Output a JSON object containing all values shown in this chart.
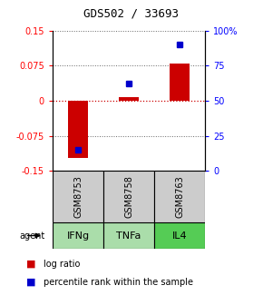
{
  "title": "GDS502 / 33693",
  "samples": [
    "GSM8753",
    "GSM8758",
    "GSM8763"
  ],
  "agents": [
    "IFNg",
    "TNFa",
    "IL4"
  ],
  "log_ratios": [
    -0.122,
    0.007,
    0.08
  ],
  "percentile_ranks": [
    15,
    62,
    90
  ],
  "ylim_left": [
    -0.15,
    0.15
  ],
  "ylim_right": [
    0,
    100
  ],
  "left_ticks": [
    -0.15,
    -0.075,
    0,
    0.075,
    0.15
  ],
  "right_ticks": [
    0,
    25,
    50,
    75,
    100
  ],
  "right_tick_labels": [
    "0",
    "25",
    "50",
    "75",
    "100%"
  ],
  "bar_color": "#cc0000",
  "marker_color": "#0000cc",
  "bar_width": 0.4,
  "marker_size": 28,
  "sample_bg_color": "#cccccc",
  "agent_colors": [
    "#aaddaa",
    "#aaddaa",
    "#55cc55"
  ],
  "grid_color": "#666666",
  "zero_line_color": "#cc0000",
  "legend_bar_color": "#cc0000",
  "legend_marker_color": "#0000cc",
  "title_fontsize": 9,
  "tick_fontsize": 7,
  "sample_fontsize": 7,
  "agent_fontsize": 8,
  "legend_fontsize": 7
}
